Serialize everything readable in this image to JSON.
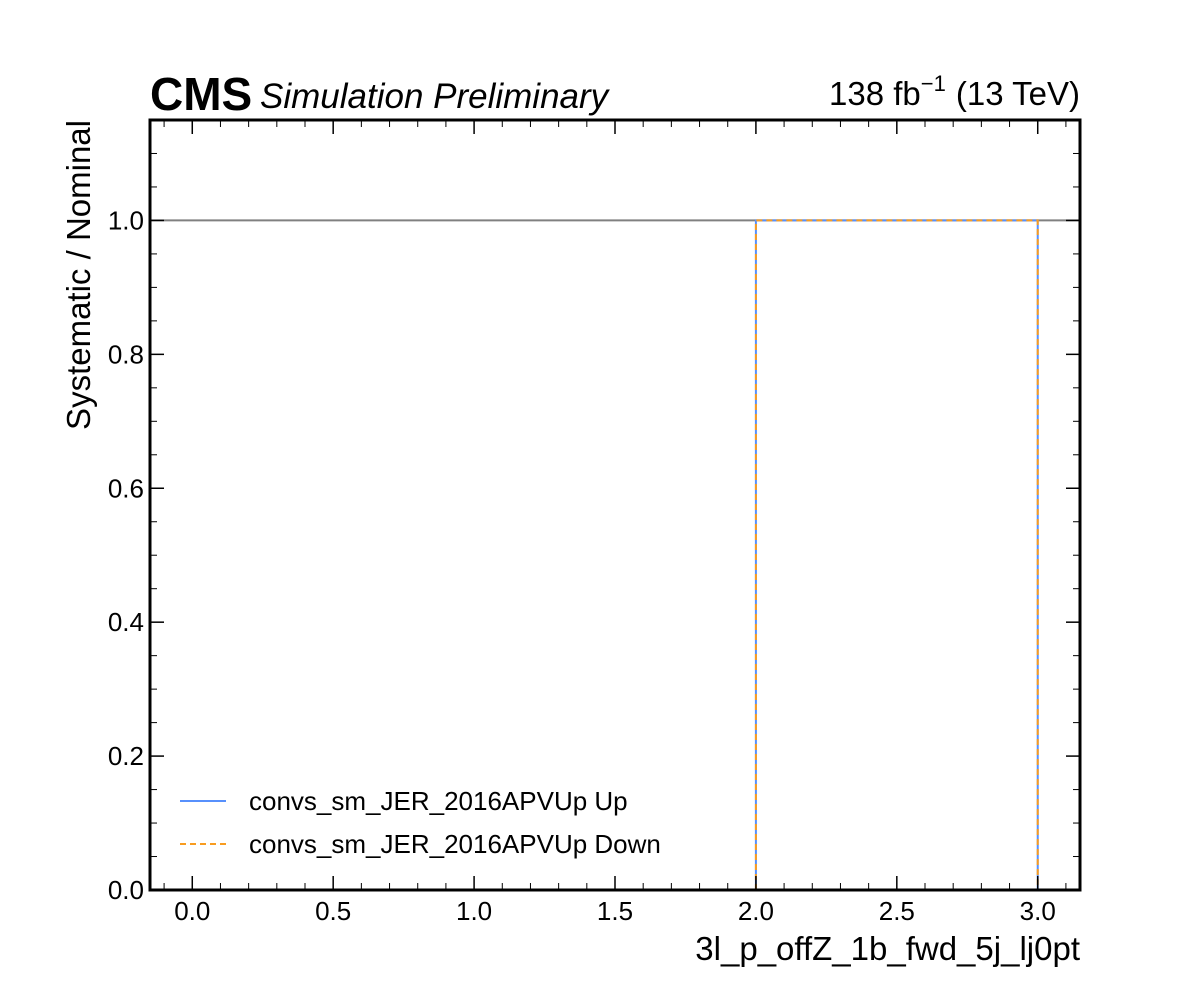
{
  "header": {
    "experiment": "CMS",
    "status": "Simulation Preliminary",
    "lumi_value": "138 fb",
    "lumi_exponent": "−1",
    "energy": "(13 TeV)"
  },
  "chart_data": {
    "type": "line",
    "title": "",
    "xlabel": "3l_p_offZ_1b_fwd_5j_lj0pt",
    "ylabel": "Systematic / Nominal",
    "xlim": [
      -0.15,
      3.15
    ],
    "ylim": [
      0.0,
      1.15
    ],
    "xticks": [
      "0.0",
      "0.5",
      "1.0",
      "1.5",
      "2.0",
      "2.5",
      "3.0"
    ],
    "yticks": [
      "0.0",
      "0.2",
      "0.4",
      "0.6",
      "0.8",
      "1.0"
    ],
    "reference_line": {
      "y": 1.0,
      "color": "#808080"
    },
    "series": [
      {
        "name": "convs_sm_JER_2016APVUp Up",
        "color": "#5790fc",
        "style": "solid",
        "x": [
          2.0,
          2.0,
          3.0,
          3.0
        ],
        "y": [
          0.0,
          1.0,
          1.0,
          0.0
        ]
      },
      {
        "name": "convs_sm_JER_2016APVUp Down",
        "color": "#f89c20",
        "style": "dashed",
        "x": [
          2.0,
          2.0,
          3.0,
          3.0
        ],
        "y": [
          0.0,
          1.0,
          1.0,
          0.0
        ]
      }
    ],
    "legend_position": "lower-left",
    "grid": false
  }
}
